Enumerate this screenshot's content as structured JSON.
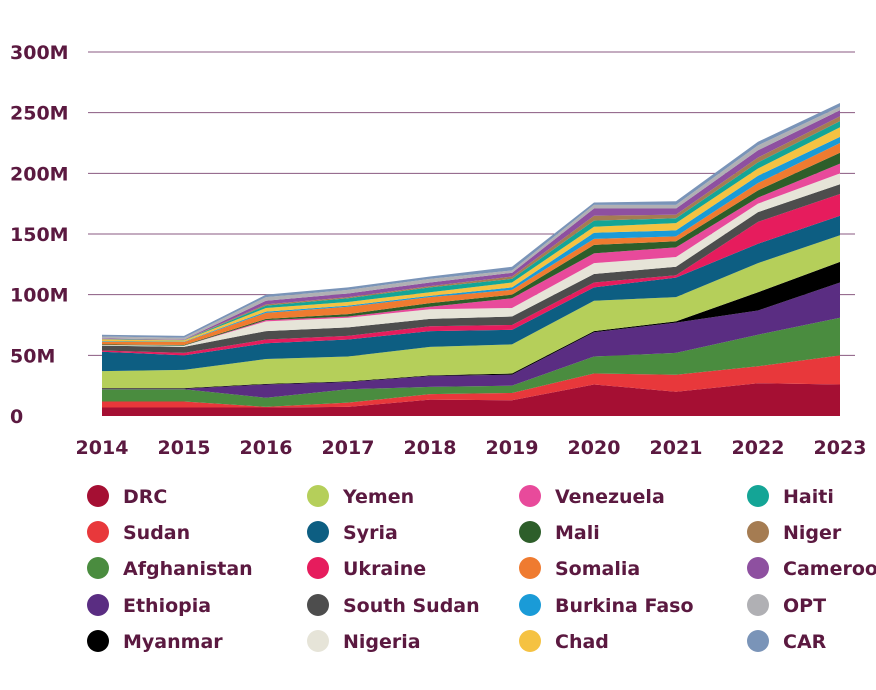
{
  "chart_data": {
    "type": "area",
    "stacked": true,
    "x": [
      2014,
      2015,
      2016,
      2017,
      2018,
      2019,
      2020,
      2021,
      2022,
      2023
    ],
    "ylim": [
      0,
      300
    ],
    "yticks": [
      0,
      50,
      100,
      150,
      200,
      250,
      300
    ],
    "ytick_labels": [
      "0",
      "50M",
      "100M",
      "150M",
      "200M",
      "250M",
      "300M"
    ],
    "xtick_labels": [
      "2014",
      "2015",
      "2016",
      "2017",
      "2018",
      "2019",
      "2020",
      "2021",
      "2022",
      "2023"
    ],
    "grid": true,
    "legend_position": "bottom",
    "series": [
      {
        "name": "DRC",
        "color": "#a50f33",
        "values": [
          7,
          7,
          7,
          7.5,
          13.5,
          13,
          26,
          20,
          27,
          26
        ]
      },
      {
        "name": "Sudan",
        "color": "#e8383b",
        "values": [
          5,
          5,
          0.5,
          3.5,
          4.5,
          6,
          9,
          14,
          14,
          24
        ]
      },
      {
        "name": "Afghanistan",
        "color": "#4a8c3f",
        "values": [
          10,
          10,
          7.5,
          11,
          6,
          6,
          14,
          18,
          26,
          31
        ]
      },
      {
        "name": "Ethiopia",
        "color": "#5a2d82",
        "values": [
          0.5,
          0.5,
          11,
          6,
          9,
          9,
          20,
          25,
          20,
          29
        ]
      },
      {
        "name": "Myanmar",
        "color": "#000000",
        "values": [
          0.5,
          0.5,
          0.5,
          0.5,
          0.5,
          1,
          1,
          1,
          15,
          17
        ]
      },
      {
        "name": "Yemen",
        "color": "#b5cf5a",
        "values": [
          14,
          15,
          20.5,
          20.5,
          23.5,
          24,
          25,
          20,
          24,
          22
        ]
      },
      {
        "name": "Syria",
        "color": "#0d5e82",
        "values": [
          16,
          12,
          13,
          14,
          13,
          12,
          11,
          16,
          16,
          16
        ]
      },
      {
        "name": "Ukraine",
        "color": "#e61c5d",
        "values": [
          1,
          2,
          3,
          3,
          4,
          4,
          4,
          2,
          18,
          18
        ]
      },
      {
        "name": "South Sudan",
        "color": "#4d4d4d",
        "values": [
          4,
          5,
          7,
          7,
          6,
          7,
          7,
          7,
          8,
          8
        ]
      },
      {
        "name": "Nigeria",
        "color": "#e6e4d8",
        "values": [
          0.5,
          1,
          8,
          8,
          8,
          7,
          9,
          8,
          7,
          9
        ]
      },
      {
        "name": "Venezuela",
        "color": "#e84a9b",
        "values": [
          0,
          0,
          1,
          1,
          2,
          8,
          8,
          8,
          5,
          8
        ]
      },
      {
        "name": "Mali",
        "color": "#2d5e2a",
        "values": [
          0.5,
          0.5,
          1,
          2,
          3,
          3,
          7,
          5,
          6,
          9
        ]
      },
      {
        "name": "Somalia",
        "color": "#ef7b30",
        "values": [
          2,
          2.5,
          5,
          6,
          5,
          4,
          5,
          4,
          6,
          8
        ]
      },
      {
        "name": "Burkina Faso",
        "color": "#1a9bd7",
        "values": [
          0.5,
          0.3,
          1,
          1,
          1,
          2,
          5,
          5,
          6,
          5
        ]
      },
      {
        "name": "Chad",
        "color": "#f5c242",
        "values": [
          1.5,
          1,
          3,
          3,
          3,
          4,
          5,
          6,
          6,
          8
        ]
      },
      {
        "name": "Haiti",
        "color": "#14a596",
        "values": [
          0.3,
          0.2,
          2,
          3,
          4,
          3,
          5,
          4,
          5,
          5
        ]
      },
      {
        "name": "Niger",
        "color": "#a57c52",
        "values": [
          0.3,
          0.2,
          1,
          1,
          1,
          2,
          4,
          3,
          4,
          4
        ]
      },
      {
        "name": "Cameroon",
        "color": "#8e50a0",
        "values": [
          0.4,
          0.3,
          3,
          3,
          3,
          3,
          6,
          5,
          6,
          5
        ]
      },
      {
        "name": "OPT",
        "color": "#b0b0b4",
        "values": [
          1.5,
          1.5,
          3,
          3,
          3,
          2,
          3,
          3,
          4,
          3
        ]
      },
      {
        "name": "CAR",
        "color": "#7a94b8",
        "values": [
          1.5,
          1.5,
          2,
          2,
          2,
          3,
          2,
          3,
          3,
          3
        ]
      }
    ]
  },
  "colors": {
    "text": "#5b1940",
    "grid": "#8a5a80"
  }
}
